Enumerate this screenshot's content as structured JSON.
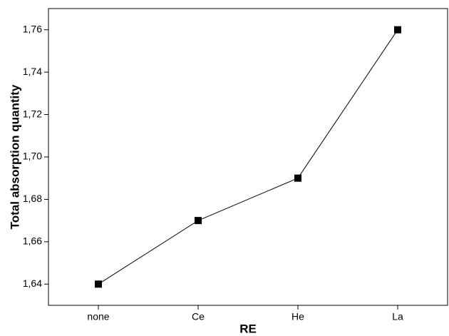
{
  "chart_data": {
    "type": "line",
    "xlabel": "RE",
    "ylabel": "Total absorption quantity",
    "categories": [
      "none",
      "Ce",
      "He",
      "La"
    ],
    "series": [
      {
        "name": "Total absorption quantity",
        "color": "#000000",
        "values": [
          1.64,
          1.67,
          1.69,
          1.76
        ]
      }
    ],
    "ylim": [
      1.63,
      1.77
    ],
    "yticks": [
      {
        "value": 1.64,
        "label": "1,64"
      },
      {
        "value": 1.66,
        "label": "1,66"
      },
      {
        "value": 1.68,
        "label": "1,68"
      },
      {
        "value": 1.7,
        "label": "1,70"
      },
      {
        "value": 1.72,
        "label": "1,72"
      },
      {
        "value": 1.74,
        "label": "1,74"
      },
      {
        "value": 1.76,
        "label": "1,76"
      }
    ]
  }
}
